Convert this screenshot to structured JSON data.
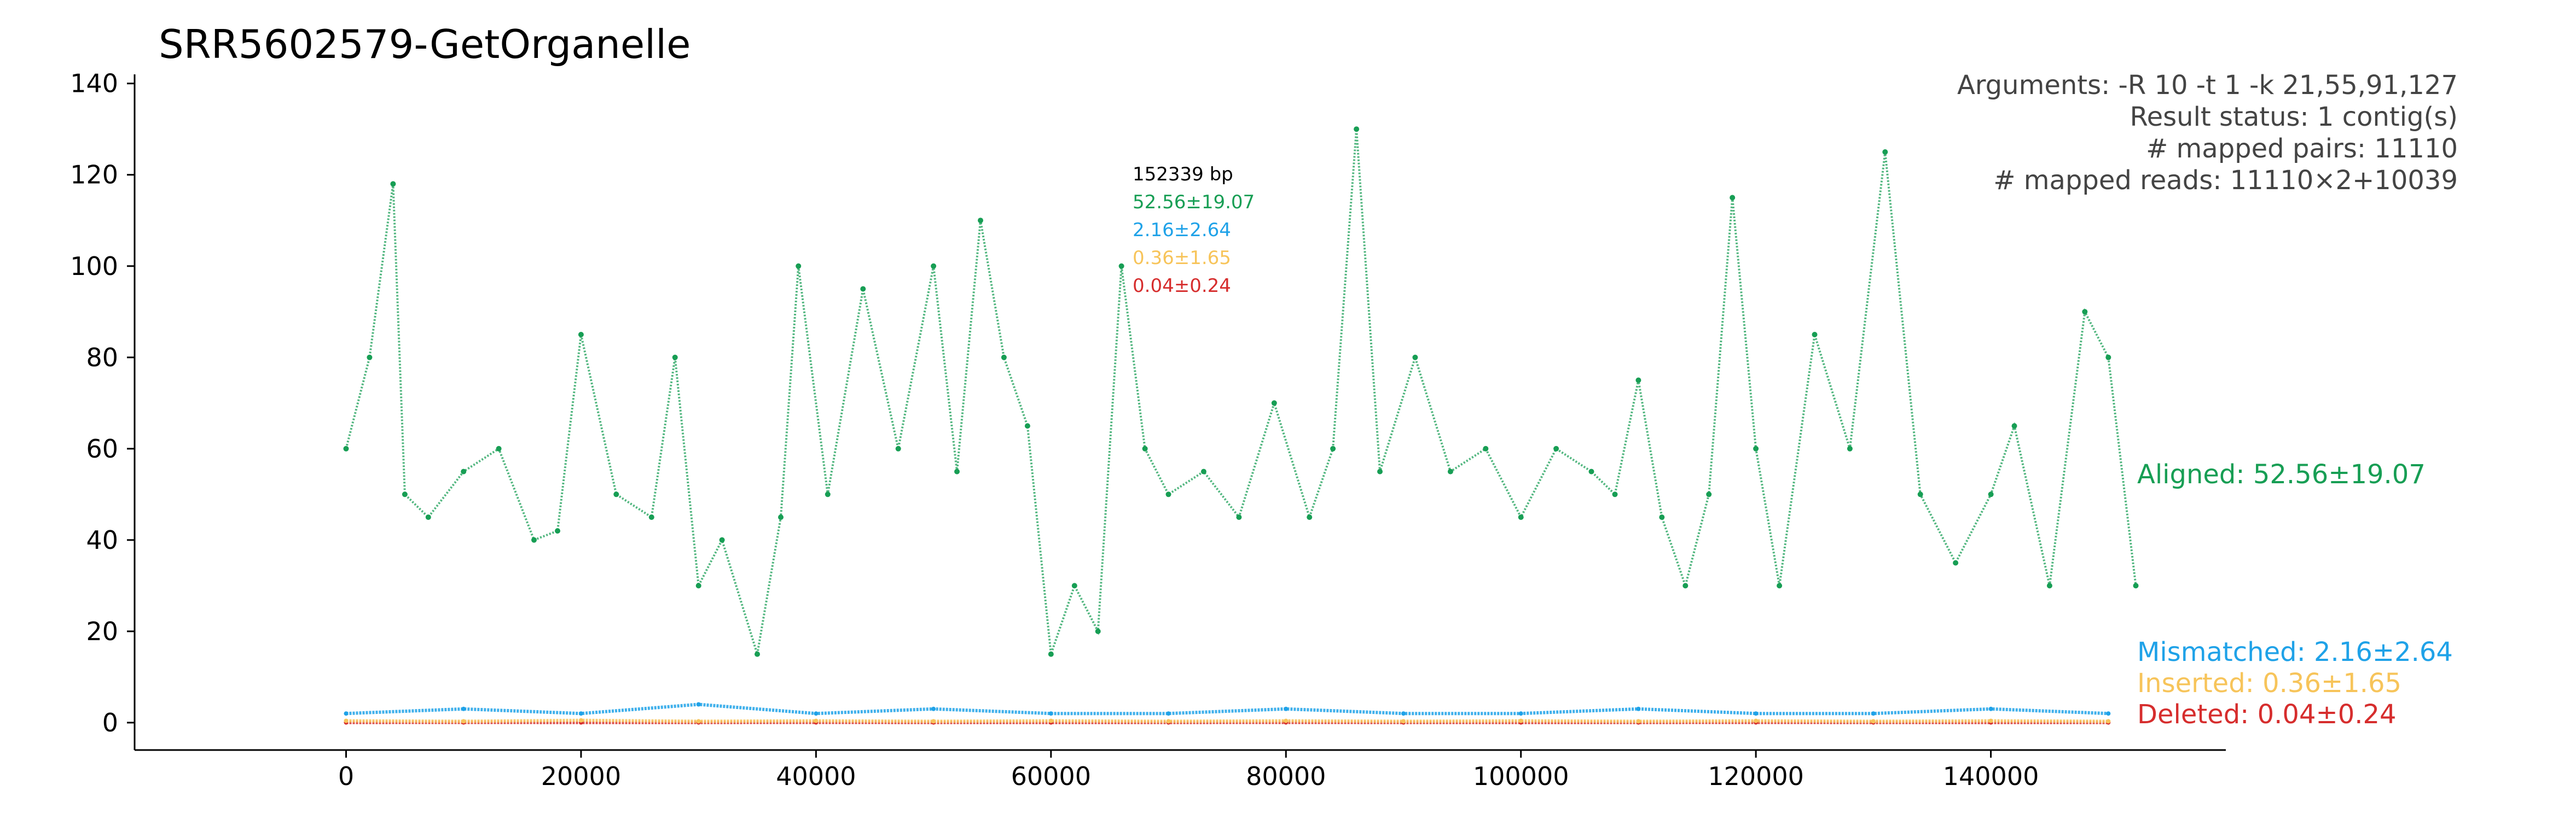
{
  "chart_data": {
    "type": "scatter",
    "title": "SRR5602579-GetOrganelle",
    "xlabel": "",
    "ylabel": "",
    "xlim": [
      -18000,
      160000
    ],
    "ylim": [
      -6,
      142
    ],
    "x_ticks": [
      0,
      20000,
      40000,
      60000,
      80000,
      100000,
      120000,
      140000
    ],
    "x_tick_labels": [
      "0",
      "20000",
      "40000",
      "60000",
      "80000",
      "100000",
      "120000",
      "140000"
    ],
    "y_ticks": [
      0,
      20,
      40,
      60,
      80,
      100,
      120,
      140
    ],
    "y_tick_labels": [
      "0",
      "20",
      "40",
      "60",
      "80",
      "100",
      "120",
      "140"
    ],
    "grid": false,
    "info_lines": [
      "Arguments: -R 10 -t 1 -k 21,55,91,127",
      "Result status: 1 contig(s)",
      "# mapped pairs: 11110",
      "# mapped reads: 11110×2+10039"
    ],
    "stats_box": {
      "length": "152339 bp",
      "aligned": "52.56±19.07",
      "mismatched": "2.16±2.64",
      "inserted": "0.36±1.65",
      "deleted": "0.04±0.24"
    },
    "series": [
      {
        "name": "Aligned: 52.56±19.07",
        "color": "#179e54",
        "x": [
          0,
          2000,
          4000,
          5000,
          7000,
          10000,
          13000,
          16000,
          18000,
          20000,
          23000,
          26000,
          28000,
          30000,
          32000,
          35000,
          37000,
          38500,
          41000,
          44000,
          47000,
          50000,
          52000,
          54000,
          56000,
          58000,
          60000,
          62000,
          64000,
          66000,
          68000,
          70000,
          73000,
          76000,
          79000,
          82000,
          84000,
          86000,
          88000,
          91000,
          94000,
          97000,
          100000,
          103000,
          106000,
          108000,
          110000,
          112000,
          114000,
          116000,
          118000,
          120000,
          122000,
          125000,
          128000,
          131000,
          134000,
          137000,
          140000,
          142000,
          145000,
          148000,
          150000,
          152339
        ],
        "y": [
          60,
          80,
          118,
          50,
          45,
          55,
          60,
          40,
          42,
          85,
          50,
          45,
          80,
          30,
          40,
          15,
          45,
          100,
          50,
          95,
          60,
          100,
          55,
          110,
          80,
          65,
          15,
          30,
          20,
          100,
          60,
          50,
          55,
          45,
          70,
          45,
          60,
          130,
          55,
          80,
          55,
          60,
          45,
          60,
          55,
          50,
          75,
          45,
          30,
          50,
          115,
          60,
          30,
          85,
          60,
          125,
          50,
          35,
          50,
          65,
          30,
          90,
          80,
          30
        ]
      },
      {
        "name": "Mismatched: 2.16±2.64",
        "color": "#1fa2e8",
        "x": [
          0,
          10000,
          20000,
          30000,
          40000,
          50000,
          60000,
          70000,
          80000,
          90000,
          100000,
          110000,
          120000,
          130000,
          140000,
          150000
        ],
        "y": [
          2,
          3,
          2,
          4,
          2,
          3,
          2,
          2,
          3,
          2,
          2,
          3,
          2,
          2,
          3,
          2
        ]
      },
      {
        "name": "Inserted: 0.36±1.65",
        "color": "#f7c45a",
        "x": [
          0,
          10000,
          20000,
          30000,
          40000,
          50000,
          60000,
          70000,
          80000,
          90000,
          100000,
          110000,
          120000,
          130000,
          140000,
          150000
        ],
        "y": [
          0.4,
          0.3,
          0.5,
          0.3,
          0.4,
          0.3,
          0.4,
          0.3,
          0.4,
          0.3,
          0.4,
          0.3,
          0.4,
          0.3,
          0.4,
          0.3
        ]
      },
      {
        "name": "Deleted: 0.04±0.24",
        "color": "#d62d2d",
        "x": [
          0,
          10000,
          20000,
          30000,
          40000,
          50000,
          60000,
          70000,
          80000,
          90000,
          100000,
          110000,
          120000,
          130000,
          140000,
          150000
        ],
        "y": [
          0.04,
          0.05,
          0.03,
          0.04,
          0.05,
          0.04,
          0.03,
          0.04,
          0.05,
          0.04,
          0.03,
          0.04,
          0.05,
          0.04,
          0.03,
          0.04
        ]
      }
    ]
  }
}
